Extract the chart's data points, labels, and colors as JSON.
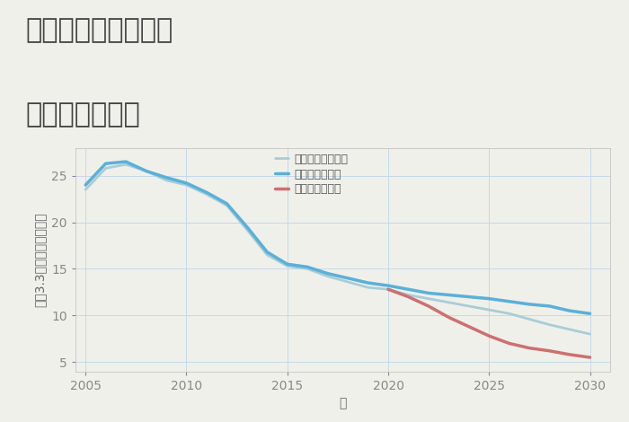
{
  "title_line1": "三重県伊賀市出後の",
  "title_line2": "土地の価格推移",
  "xlabel": "年",
  "ylabel": "坪（3.3㎡）単価（万円）",
  "background_color": "#f0f0eb",
  "plot_background": "#f0f0eb",
  "grid_color": "#c5d8e8",
  "ylim": [
    4,
    28
  ],
  "yticks": [
    5,
    10,
    15,
    20,
    25
  ],
  "good_scenario": {
    "label": "グッドシナリオ",
    "color": "#5ab0d8",
    "linewidth": 2.5,
    "years": [
      2005,
      2006,
      2007,
      2008,
      2009,
      2010,
      2011,
      2012,
      2013,
      2014,
      2015,
      2016,
      2017,
      2018,
      2019,
      2020,
      2021,
      2022,
      2023,
      2024,
      2025,
      2026,
      2027,
      2028,
      2029,
      2030
    ],
    "values": [
      24.0,
      26.3,
      26.5,
      25.5,
      24.8,
      24.2,
      23.2,
      22.0,
      19.5,
      16.8,
      15.5,
      15.2,
      14.5,
      14.0,
      13.5,
      13.2,
      12.8,
      12.4,
      12.2,
      12.0,
      11.8,
      11.5,
      11.2,
      11.0,
      10.5,
      10.2
    ]
  },
  "bad_scenario": {
    "label": "バッドシナリオ",
    "color": "#cc7070",
    "linewidth": 2.5,
    "years": [
      2020,
      2021,
      2022,
      2023,
      2024,
      2025,
      2026,
      2027,
      2028,
      2029,
      2030
    ],
    "values": [
      12.8,
      12.0,
      11.0,
      9.8,
      8.8,
      7.8,
      7.0,
      6.5,
      6.2,
      5.8,
      5.5
    ]
  },
  "normal_scenario": {
    "label": "ノーマルシナリオ",
    "color": "#a8cdd8",
    "linewidth": 2.0,
    "years": [
      2005,
      2006,
      2007,
      2008,
      2009,
      2010,
      2011,
      2012,
      2013,
      2014,
      2015,
      2016,
      2017,
      2018,
      2019,
      2020,
      2021,
      2022,
      2023,
      2024,
      2025,
      2026,
      2027,
      2028,
      2029,
      2030
    ],
    "values": [
      23.5,
      25.8,
      26.2,
      25.5,
      24.5,
      24.0,
      23.0,
      21.8,
      19.2,
      16.5,
      15.3,
      15.0,
      14.2,
      13.6,
      13.0,
      12.8,
      12.2,
      11.8,
      11.4,
      11.0,
      10.6,
      10.2,
      9.6,
      9.0,
      8.5,
      8.0
    ]
  },
  "legend_fontsize": 9,
  "title_fontsize": 22,
  "label_fontsize": 10,
  "tick_fontsize": 10
}
